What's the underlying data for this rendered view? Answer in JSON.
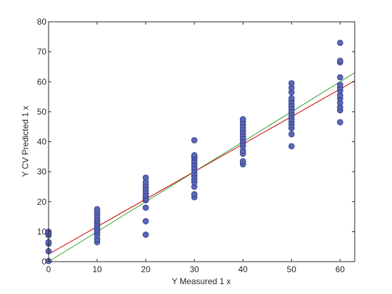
{
  "chart_data": {
    "type": "scatter",
    "title": "",
    "xlabel": "Y Measured 1 x",
    "ylabel": "Y CV Predicted 1 x",
    "xlim": [
      0,
      63
    ],
    "ylim": [
      0,
      80
    ],
    "xticks": [
      0,
      10,
      20,
      30,
      40,
      50,
      60
    ],
    "yticks": [
      0,
      10,
      20,
      30,
      40,
      50,
      60,
      70,
      80
    ],
    "grid": false,
    "colors": {
      "marker_fill": "#5b67b5",
      "marker_edge": "#2e3b8a",
      "fit_line": "#cc0000",
      "identity_line": "#2ca02c",
      "axis": "#262626"
    },
    "series": [
      {
        "type": "scatter",
        "points": [
          [
            0,
            0.2
          ],
          [
            0,
            3.5
          ],
          [
            0,
            6.0
          ],
          [
            0,
            6.5
          ],
          [
            0,
            8.8
          ],
          [
            0,
            9.5
          ],
          [
            0,
            10.0
          ],
          [
            10,
            6.5
          ],
          [
            10,
            7.5
          ],
          [
            10,
            8.8
          ],
          [
            10,
            9.8
          ],
          [
            10,
            10.5
          ],
          [
            10,
            11.2
          ],
          [
            10,
            12.0
          ],
          [
            10,
            12.8
          ],
          [
            10,
            13.5
          ],
          [
            10,
            14.5
          ],
          [
            10,
            15.5
          ],
          [
            10,
            16.5
          ],
          [
            10,
            17.5
          ],
          [
            20,
            9.0
          ],
          [
            20,
            13.5
          ],
          [
            20,
            18.0
          ],
          [
            20,
            20.5
          ],
          [
            20,
            21.0
          ],
          [
            20,
            21.8
          ],
          [
            20,
            22.5
          ],
          [
            20,
            23.5
          ],
          [
            20,
            24.5
          ],
          [
            20,
            25.5
          ],
          [
            20,
            26.5
          ],
          [
            20,
            28.0
          ],
          [
            30,
            21.5
          ],
          [
            30,
            22.5
          ],
          [
            30,
            25.0
          ],
          [
            30,
            26.5
          ],
          [
            30,
            27.5
          ],
          [
            30,
            28.5
          ],
          [
            30,
            29.5
          ],
          [
            30,
            30.5
          ],
          [
            30,
            31.5
          ],
          [
            30,
            32.5
          ],
          [
            30,
            33.5
          ],
          [
            30,
            34.5
          ],
          [
            30,
            35.0
          ],
          [
            30,
            35.5
          ],
          [
            30,
            40.5
          ],
          [
            40,
            32.5
          ],
          [
            40,
            33.5
          ],
          [
            40,
            36.0
          ],
          [
            40,
            37.0
          ],
          [
            40,
            38.5
          ],
          [
            40,
            39.5
          ],
          [
            40,
            40.5
          ],
          [
            40,
            41.5
          ],
          [
            40,
            42.5
          ],
          [
            40,
            43.5
          ],
          [
            40,
            44.5
          ],
          [
            40,
            45.5
          ],
          [
            40,
            46.5
          ],
          [
            40,
            47.5
          ],
          [
            50,
            38.5
          ],
          [
            50,
            42.5
          ],
          [
            50,
            44.5
          ],
          [
            50,
            45.5
          ],
          [
            50,
            46.5
          ],
          [
            50,
            47.5
          ],
          [
            50,
            48.5
          ],
          [
            50,
            49.5
          ],
          [
            50,
            50.5
          ],
          [
            50,
            51.5
          ],
          [
            50,
            52.5
          ],
          [
            50,
            53.5
          ],
          [
            50,
            54.5
          ],
          [
            50,
            56.5
          ],
          [
            50,
            58.0
          ],
          [
            50,
            59.5
          ],
          [
            60,
            46.5
          ],
          [
            60,
            50.5
          ],
          [
            60,
            51.5
          ],
          [
            60,
            53.0
          ],
          [
            60,
            54.5
          ],
          [
            60,
            55.5
          ],
          [
            60,
            57.0
          ],
          [
            60,
            58.0
          ],
          [
            60,
            59.0
          ],
          [
            60,
            61.5
          ],
          [
            60,
            66.5
          ],
          [
            60,
            67.0
          ],
          [
            60,
            73.0
          ]
        ]
      },
      {
        "type": "line",
        "points": [
          [
            0,
            2.5
          ],
          [
            63,
            60.3
          ]
        ]
      },
      {
        "type": "line",
        "points": [
          [
            0,
            0
          ],
          [
            63,
            63
          ]
        ]
      }
    ]
  }
}
